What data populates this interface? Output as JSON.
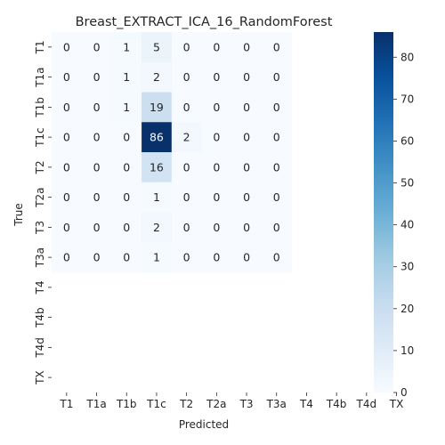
{
  "chart_data": {
    "type": "heatmap",
    "title": "Breast_EXTRACT_ICA_16_RandomForest",
    "xlabel": "Predicted",
    "ylabel": "True",
    "x_categories": [
      "T1",
      "T1a",
      "T1b",
      "T1c",
      "T2",
      "T2a",
      "T3",
      "T3a",
      "T4",
      "T4b",
      "T4d",
      "TX"
    ],
    "y_categories": [
      "T1",
      "T1a",
      "T1b",
      "T1c",
      "T2",
      "T2a",
      "T3",
      "T3a",
      "T4",
      "T4b",
      "T4d",
      "TX"
    ],
    "values": [
      [
        0,
        0,
        1,
        5,
        0,
        0,
        0,
        0,
        null,
        null,
        null,
        null
      ],
      [
        0,
        0,
        1,
        2,
        0,
        0,
        0,
        0,
        null,
        null,
        null,
        null
      ],
      [
        0,
        0,
        1,
        19,
        0,
        0,
        0,
        0,
        null,
        null,
        null,
        null
      ],
      [
        0,
        0,
        0,
        86,
        2,
        0,
        0,
        0,
        null,
        null,
        null,
        null
      ],
      [
        0,
        0,
        0,
        16,
        0,
        0,
        0,
        0,
        null,
        null,
        null,
        null
      ],
      [
        0,
        0,
        0,
        1,
        0,
        0,
        0,
        0,
        null,
        null,
        null,
        null
      ],
      [
        0,
        0,
        0,
        2,
        0,
        0,
        0,
        0,
        null,
        null,
        null,
        null
      ],
      [
        0,
        0,
        0,
        1,
        0,
        0,
        0,
        0,
        null,
        null,
        null,
        null
      ],
      [
        null,
        null,
        null,
        null,
        null,
        null,
        null,
        null,
        null,
        null,
        null,
        null
      ],
      [
        null,
        null,
        null,
        null,
        null,
        null,
        null,
        null,
        null,
        null,
        null,
        null
      ],
      [
        null,
        null,
        null,
        null,
        null,
        null,
        null,
        null,
        null,
        null,
        null,
        null
      ],
      [
        null,
        null,
        null,
        null,
        null,
        null,
        null,
        null,
        null,
        null,
        null,
        null
      ]
    ],
    "colorbar": {
      "colormap": "Blues",
      "vmin": 0,
      "vmax": 86,
      "ticks": [
        0,
        10,
        20,
        30,
        40,
        50,
        60,
        70,
        80
      ]
    }
  }
}
